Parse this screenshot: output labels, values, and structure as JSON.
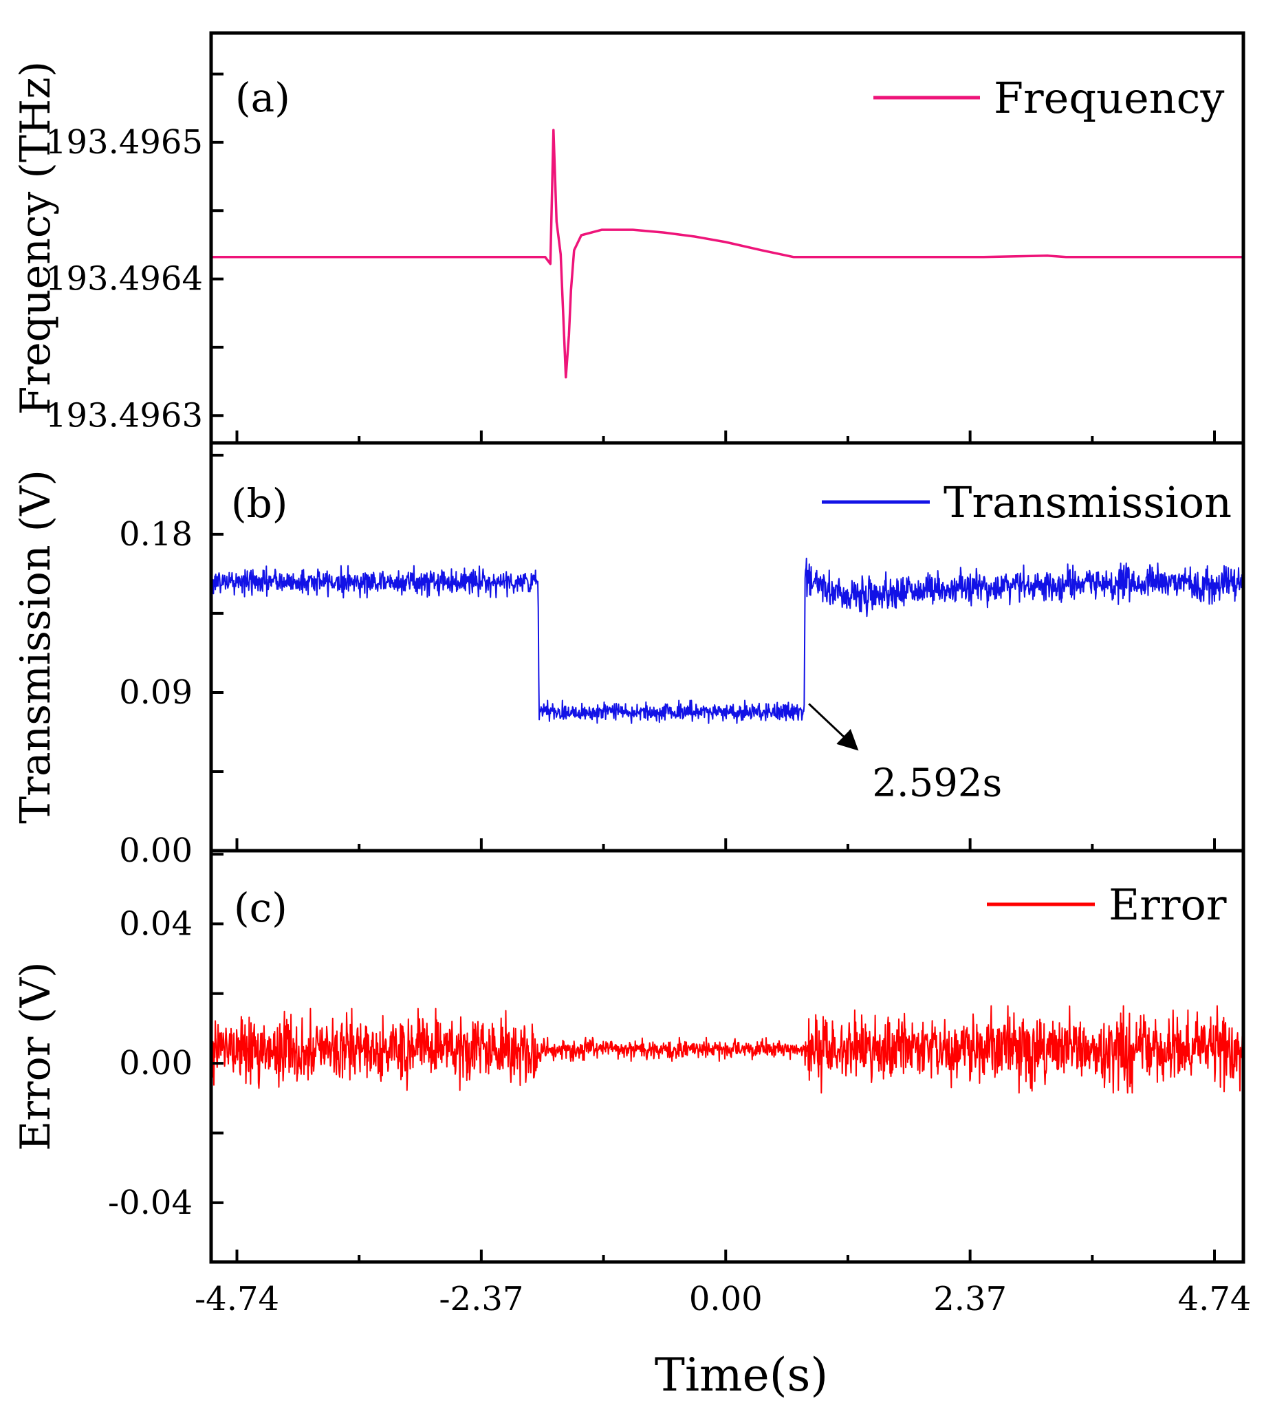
{
  "figure": {
    "xlabel": "Time(s)",
    "x_ticks": [
      -4.74,
      -2.37,
      0.0,
      2.37,
      4.74
    ],
    "x_tick_labels": [
      "-4.74",
      "-2.37",
      "0.00",
      "2.37",
      "4.74"
    ],
    "xlim": [
      -4.99,
      5.02
    ],
    "x_minor_step": 1.185
  },
  "chart_data": [
    {
      "id": "a",
      "type": "line",
      "panel_label": "(a)",
      "ylabel": "Frequency (THz)",
      "legend": "Frequency",
      "color": "#ee1479",
      "ylim": [
        193.49628,
        193.49658
      ],
      "y_ticks": [
        193.4963,
        193.4964,
        193.4965
      ],
      "y_tick_labels": [
        "193.4963",
        "193.4964",
        "193.4965"
      ],
      "y_minor_step": 5e-05,
      "series": [
        {
          "name": "Frequency",
          "x": [
            -4.99,
            -3.5,
            -2.0,
            -1.75,
            -1.7,
            -1.67,
            -1.64,
            -1.6,
            -1.55,
            -1.52,
            -1.5,
            -1.47,
            -1.4,
            -1.2,
            -0.9,
            -0.6,
            -0.3,
            0.0,
            0.35,
            0.66,
            0.7,
            1.2,
            2.5,
            3.12,
            3.3,
            5.02
          ],
          "values": [
            193.496416,
            193.496416,
            193.496416,
            193.496416,
            193.496411,
            193.496509,
            193.496442,
            193.496418,
            193.496328,
            193.496359,
            193.496392,
            193.496421,
            193.496432,
            193.496436,
            193.496436,
            193.496434,
            193.496431,
            193.496427,
            193.496421,
            193.496416,
            193.496416,
            193.496416,
            193.496416,
            193.496417,
            193.496416,
            193.496416
          ]
        }
      ]
    },
    {
      "id": "b",
      "type": "line",
      "panel_label": "(b)",
      "ylabel": "Transmission (V)",
      "legend": "Transmission",
      "color": "#1212e6",
      "ylim": [
        0.0,
        0.232
      ],
      "y_ticks": [
        0.0,
        0.09,
        0.18
      ],
      "y_tick_labels": [
        "0.00",
        "0.09",
        "0.18"
      ],
      "y_minor_step": 0.045,
      "annotation": {
        "text": "2.592s",
        "x": 0.86,
        "y": 0.082
      },
      "series": [
        {
          "name": "Transmission",
          "x": [
            -4.99,
            -1.82,
            -1.81,
            0.76,
            0.77,
            1.0,
            1.3,
            1.6,
            2.0,
            2.5,
            3.0,
            4.0,
            5.02
          ],
          "values": [
            0.153,
            0.153,
            0.079,
            0.079,
            0.154,
            0.148,
            0.145,
            0.147,
            0.149,
            0.15,
            0.151,
            0.152,
            0.152
          ],
          "noise": [
            0.0035,
            0.0035,
            0.0025,
            0.0025,
            0.005,
            0.005,
            0.005,
            0.0045,
            0.0045,
            0.0045,
            0.0045,
            0.0045,
            0.0045
          ]
        }
      ]
    },
    {
      "id": "c",
      "type": "line",
      "panel_label": "(c)",
      "ylabel": "Error (V)",
      "legend": "Error",
      "color": "#ff0000",
      "ylim": [
        -0.057,
        0.061
      ],
      "y_ticks": [
        -0.04,
        0.0,
        0.04
      ],
      "y_tick_labels": [
        "-0.04",
        "0.00",
        "0.04"
      ],
      "y_minor_step": 0.02,
      "series": [
        {
          "name": "Error",
          "x": [
            -4.99,
            -1.82,
            -1.81,
            0.76,
            0.77,
            5.02
          ],
          "values": [
            0.004,
            0.004,
            0.004,
            0.004,
            0.004,
            0.004
          ],
          "noise": [
            0.0045,
            0.0045,
            0.0013,
            0.0013,
            0.0048,
            0.0048
          ]
        }
      ]
    }
  ]
}
